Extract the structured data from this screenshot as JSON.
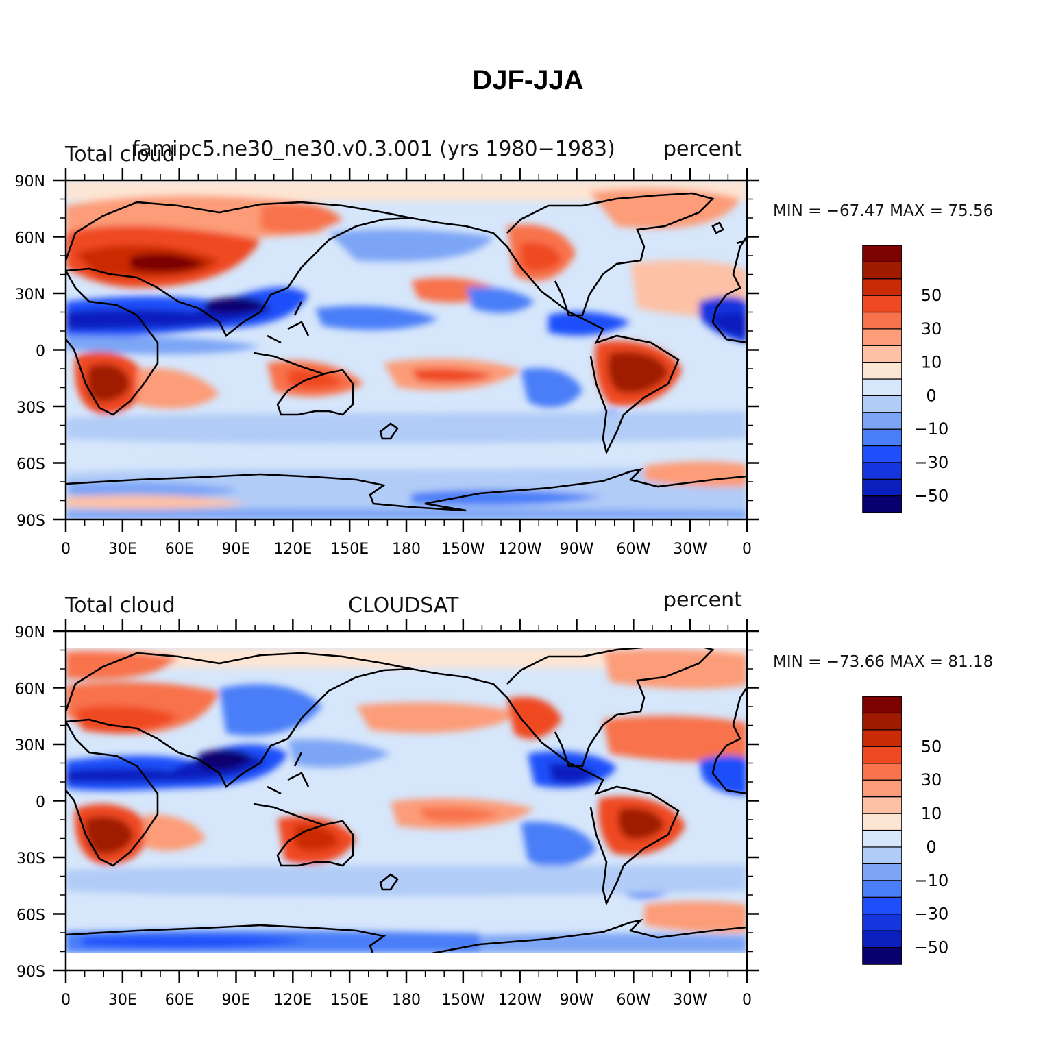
{
  "title": "DJF-JJA",
  "colors": {
    "levels": [
      "#08006e",
      "#0b1fbe",
      "#1536df",
      "#1f4ffa",
      "#4a7ef8",
      "#7da5f6",
      "#b1ccf7",
      "#d6e6fb",
      "#fde5d3",
      "#fdc1a6",
      "#fc9c78",
      "#f8724c",
      "#ef4923",
      "#cb2a06",
      "#a01a00",
      "#7c0100"
    ]
  },
  "colorbar": {
    "labels": [
      "50",
      "30",
      "10",
      "0",
      "−10",
      "−30",
      "−50"
    ]
  },
  "axes": {
    "lat_labels": [
      "90N",
      "60N",
      "30N",
      "0",
      "30S",
      "60S",
      "90S"
    ],
    "lon_labels": [
      "0",
      "30E",
      "60E",
      "90E",
      "120E",
      "150E",
      "180",
      "150W",
      "120W",
      "90W",
      "60W",
      "30W",
      "0"
    ]
  },
  "panels": [
    {
      "left_string": "Total cloud",
      "center_string": "famipc5.ne30_ne30.v0.3.001 (yrs 1980−1983)",
      "right_string": "percent",
      "minmax": "MIN = −67.47  MAX =   75.56"
    },
    {
      "left_string": "Total cloud",
      "center_string": "CLOUDSAT",
      "right_string": "percent",
      "minmax": "MIN = −73.66  MAX =   81.18"
    }
  ],
  "chart_data": [
    {
      "type": "heatmap",
      "title": "famipc5.ne30_ne30.v0.3.001 (yrs 1980−1983)",
      "variable": "Total cloud",
      "units": "percent",
      "min": -67.47,
      "max": 75.56,
      "xlim": [
        0,
        360
      ],
      "ylim": [
        -90,
        90
      ],
      "colorbar_levels": [
        -70,
        -60,
        -50,
        -40,
        -30,
        -20,
        -10,
        0,
        5,
        10,
        20,
        30,
        40,
        50,
        60,
        70
      ],
      "grid": false
    },
    {
      "type": "heatmap",
      "title": "CLOUDSAT",
      "variable": "Total cloud",
      "units": "percent",
      "min": -73.66,
      "max": 81.18,
      "xlim": [
        0,
        360
      ],
      "ylim": [
        -90,
        90
      ],
      "colorbar_levels": [
        -70,
        -60,
        -50,
        -40,
        -30,
        -20,
        -10,
        0,
        5,
        10,
        20,
        30,
        40,
        50,
        60,
        70
      ],
      "grid": false
    }
  ]
}
